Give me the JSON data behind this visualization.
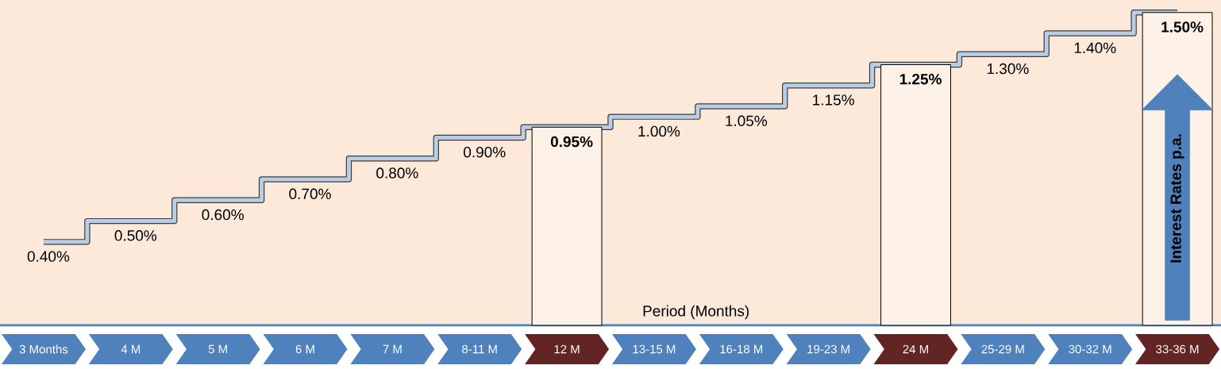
{
  "chart_data": {
    "type": "step",
    "xlabel": "Period (Months)",
    "ylabel": "Interest Rates p.a.",
    "categories": [
      "3 Months",
      "4 M",
      "5 M",
      "6 M",
      "7 M",
      "8-11 M",
      "12 M",
      "13-15 M",
      "16-18 M",
      "19-23 M",
      "24 M",
      "25-29 M",
      "30-32 M",
      "33-36 M"
    ],
    "series": [
      {
        "color": "#b9cde5",
        "values": [
          0.4,
          0.5,
          0.6,
          0.7,
          0.8,
          0.9,
          0.95,
          1.0,
          1.05,
          1.15,
          1.25,
          1.3,
          1.4,
          1.5
        ],
        "value_labels": [
          "0.40%",
          "0.50%",
          "0.60%",
          "0.70%",
          "0.80%",
          "0.90%",
          "**0.95%**",
          "1.00%",
          "1.05%",
          "1.15%",
          "**1.25%**",
          "1.30%",
          "1.40%",
          "**1.50%**"
        ]
      },
      {
        "type": "bar",
        "color": "#fdf1e8",
        "values": [
          null,
          null,
          null,
          null,
          null,
          null,
          0.95,
          null,
          null,
          null,
          1.25,
          null,
          null,
          1.5
        ]
      }
    ],
    "colors": [
      "#4f81bd",
      "#4f81bd",
      "#4f81bd",
      "#4f81bd",
      "#4f81bd",
      "#4f81bd",
      "#632523",
      "#4f81bd",
      "#4f81bd",
      "#4f81bd",
      "#632523",
      "#4f81bd",
      "#4f81bd",
      "#632523"
    ]
  }
}
